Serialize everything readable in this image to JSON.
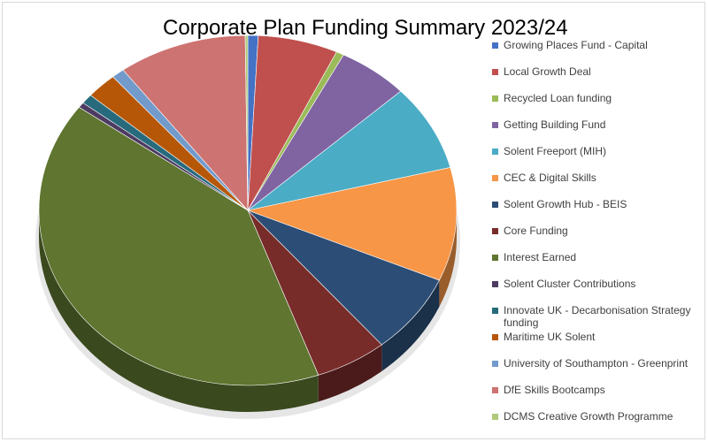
{
  "chart_data": {
    "type": "pie",
    "title": "Corporate Plan Funding Summary 2023/24",
    "legend_position": "right",
    "slices": [
      {
        "label": "Growing Places Fund - Capital",
        "value": 0.8,
        "color": "#4472c4"
      },
      {
        "label": "Local Growth Deal",
        "value": 6.2,
        "color": "#c0504d"
      },
      {
        "label": "Recycled Loan funding",
        "value": 0.6,
        "color": "#9bbb59"
      },
      {
        "label": "Getting Building Fund",
        "value": 5.5,
        "color": "#8064a2"
      },
      {
        "label": "Solent Freeport (MIH)",
        "value": 8.0,
        "color": "#4bacc6"
      },
      {
        "label": "CEC & Digital Skills",
        "value": 10.5,
        "color": "#f79646"
      },
      {
        "label": "Solent Growth Hub - BEIS",
        "value": 7.4,
        "color": "#2c4d75"
      },
      {
        "label": "Core Funding",
        "value": 5.6,
        "color": "#772c2a"
      },
      {
        "label": "Interest Earned",
        "value": 40.6,
        "color": "#5f7530"
      },
      {
        "label": "Solent Cluster Contributions",
        "value": 0.5,
        "color": "#4d3b62"
      },
      {
        "label": "Innovate UK - Decarbonisation Strategy funding",
        "value": 0.9,
        "color": "#276a7c"
      },
      {
        "label": "Maritime UK Solent",
        "value": 2.4,
        "color": "#b65708"
      },
      {
        "label": "University of Southampton - Greenprint",
        "value": 1.0,
        "color": "#729aca"
      },
      {
        "label": "DfE Skills Bootcamps",
        "value": 10.0,
        "color": "#cd7371"
      },
      {
        "label": "DCMS Creative Growth Programme",
        "value": 0.2,
        "color": "#afc97a"
      }
    ]
  }
}
